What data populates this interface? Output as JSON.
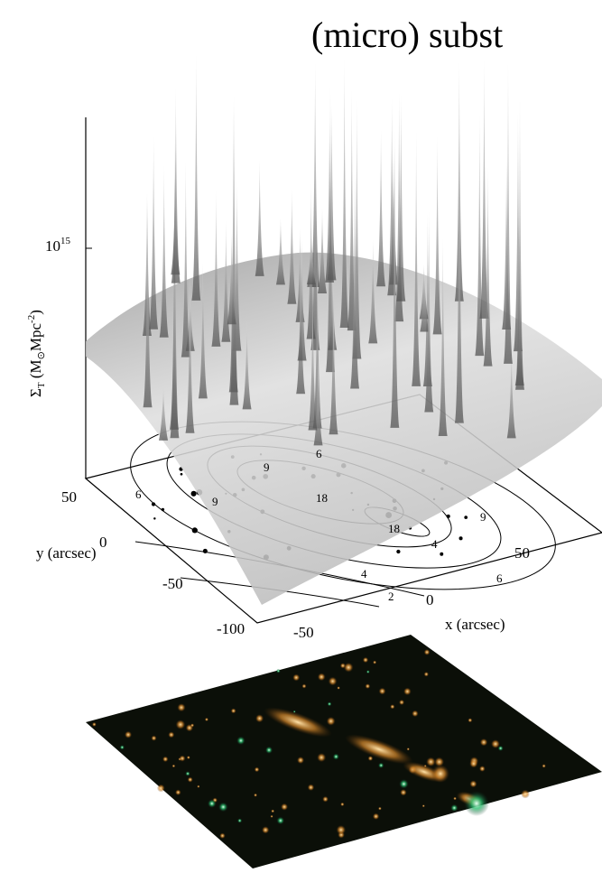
{
  "title": "(micro) subst",
  "surface_plot": {
    "z_axis_label": {
      "symbol": "Σ",
      "sub": "T",
      "open": " (M",
      "sun": "⊙",
      "unit": "Mpc",
      "exp": "-2",
      "close": ")"
    },
    "z_tick": {
      "base": "10",
      "exponent": "15"
    },
    "y_axis_label": "y (arcsec)",
    "y_ticks": [
      "50",
      "0",
      "-50",
      "-100"
    ],
    "x_axis_label": "x (arcsec)",
    "x_ticks": [
      "-50",
      "0",
      "50"
    ],
    "contour_labels": [
      "6",
      "9",
      "18",
      "18",
      "9",
      "6",
      "4",
      "4",
      "2",
      "9",
      "6"
    ]
  }
}
